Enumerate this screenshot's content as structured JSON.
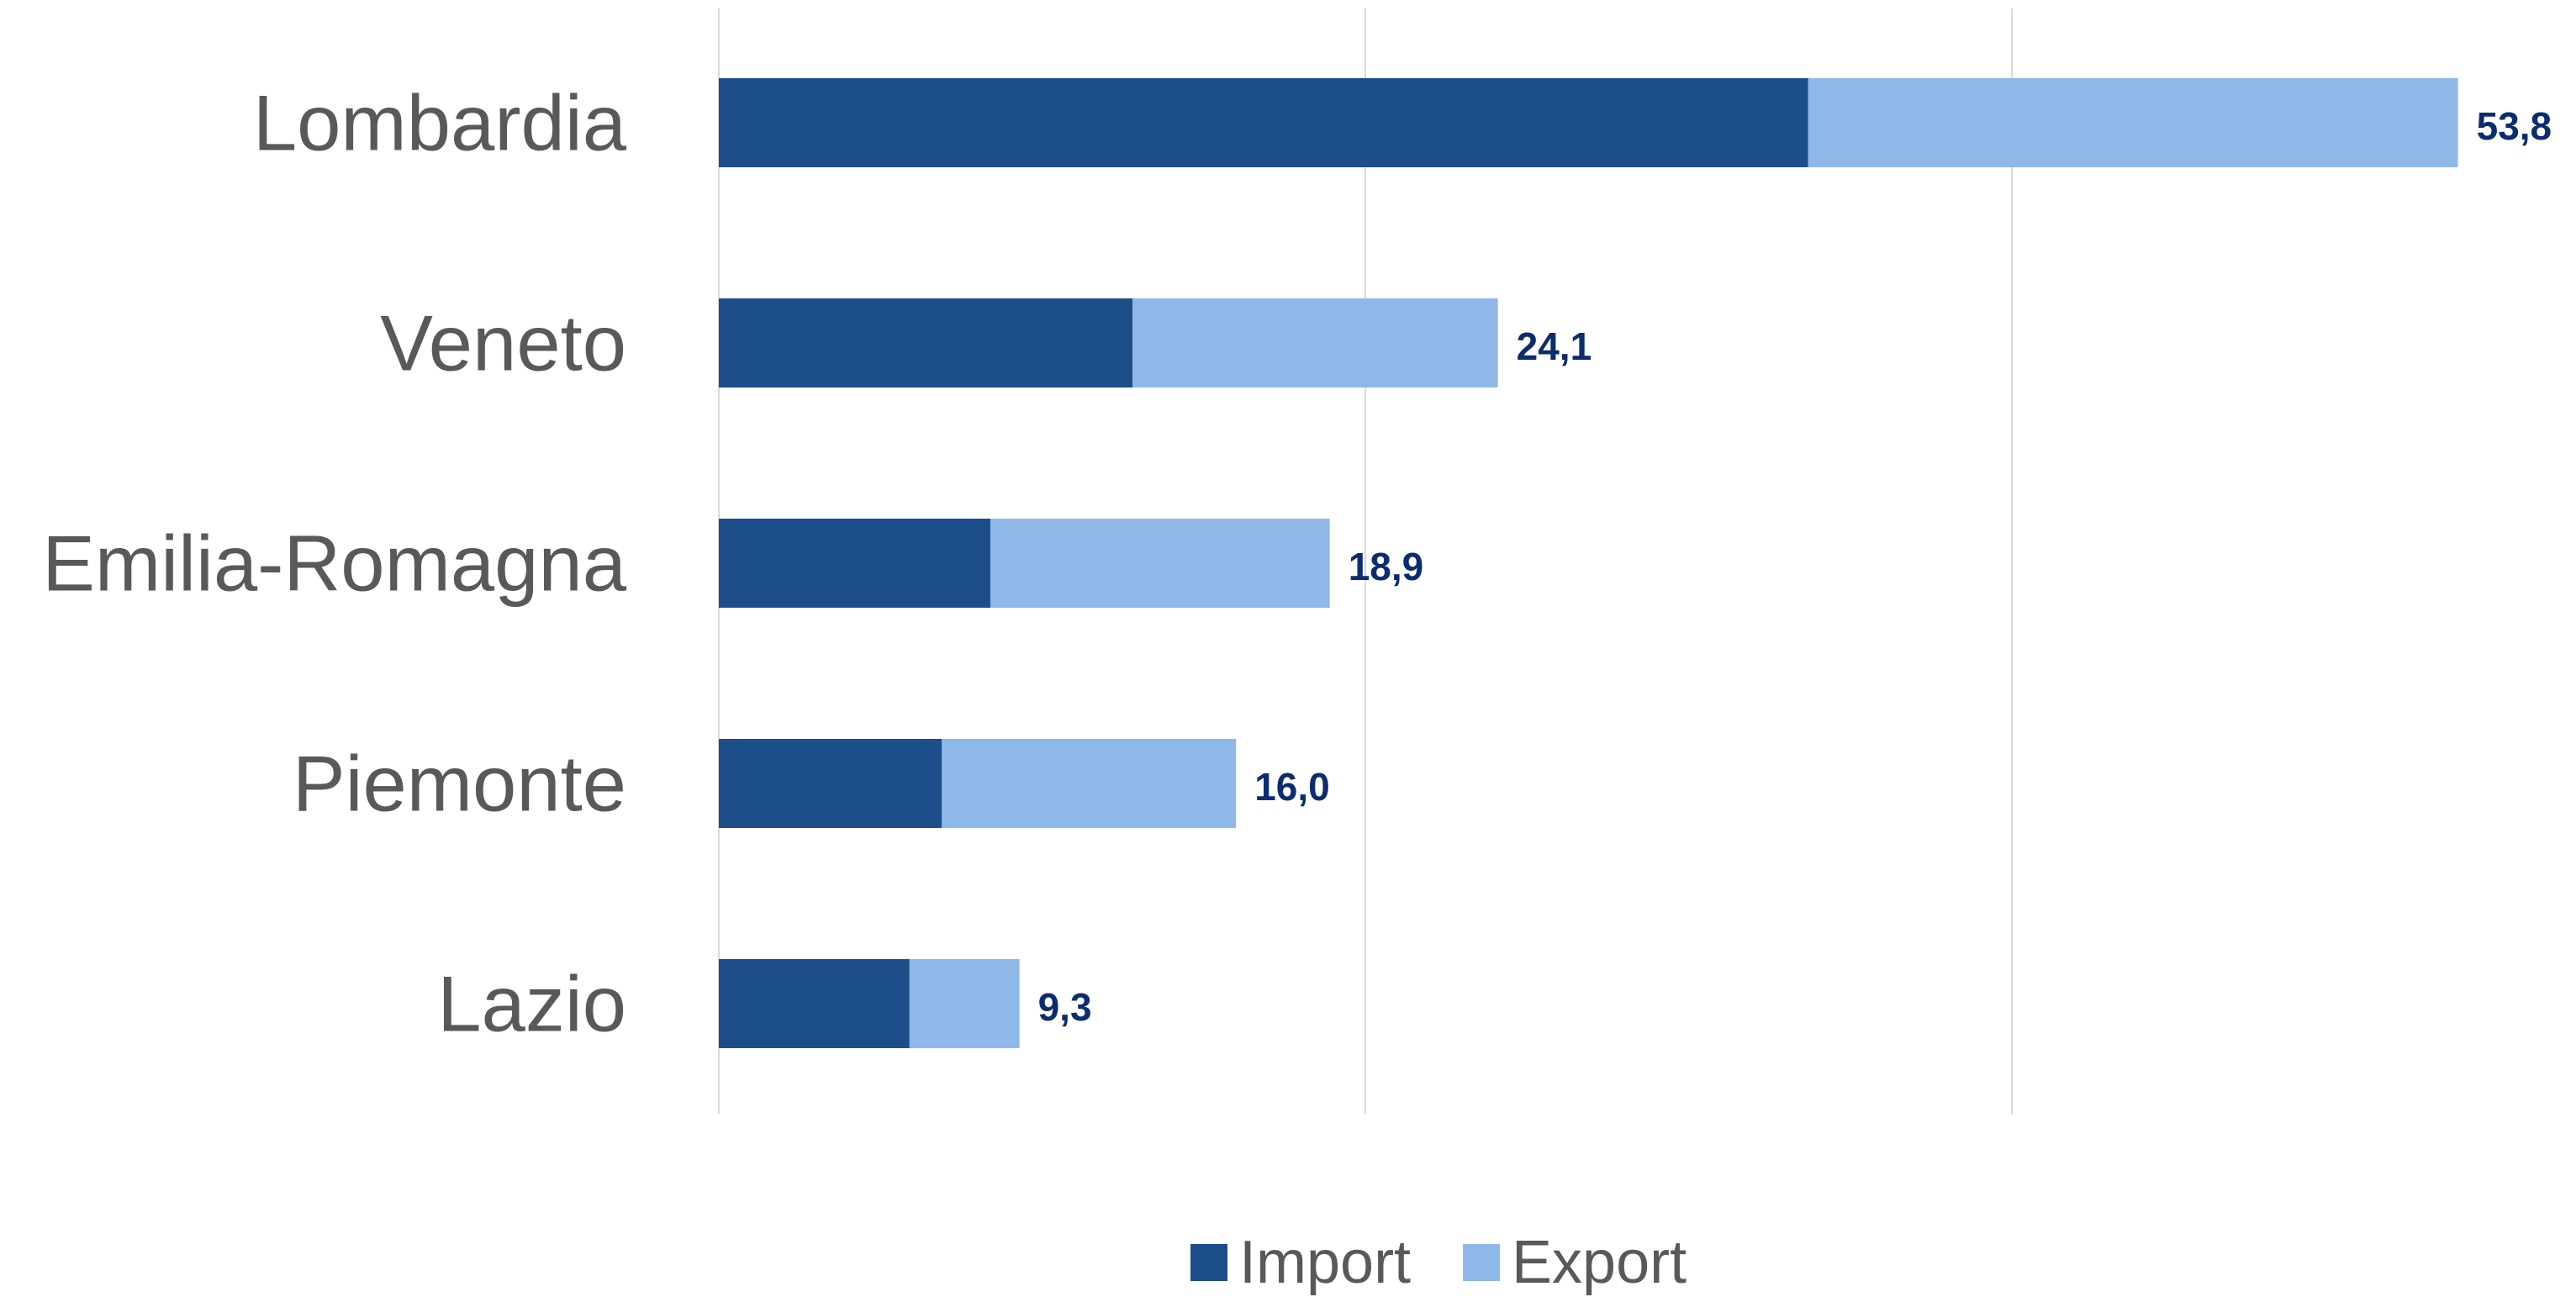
{
  "chart_data": {
    "type": "bar",
    "orientation": "horizontal",
    "stacked": true,
    "categories": [
      "Lombardia",
      "Veneto",
      "Emilia-Romagna",
      "Piemonte",
      "Lazio"
    ],
    "series": [
      {
        "name": "Import",
        "values": [
          33.7,
          12.8,
          8.4,
          6.9,
          5.9
        ]
      },
      {
        "name": "Export",
        "values": [
          20.1,
          11.3,
          10.5,
          9.1,
          3.4
        ]
      }
    ],
    "totals": [
      53.8,
      24.1,
      18.9,
      16.0,
      9.3
    ],
    "total_labels": [
      "53,8",
      "24,1",
      "18,9",
      "16,0",
      "9,3"
    ],
    "xlim": [
      0,
      60
    ],
    "gridlines_at": [
      0,
      20,
      40
    ],
    "grid": true,
    "legend_position": "bottom",
    "colors": {
      "Import": "#1c4f89",
      "Export": "#8fb8e8",
      "gridline": "#d9d9d9",
      "category_text": "#595959",
      "total_text": "#0b2d6e"
    },
    "title": "",
    "xlabel": "",
    "ylabel": ""
  },
  "legend": {
    "items": [
      {
        "label": "Import",
        "color": "#1c4f89"
      },
      {
        "label": "Export",
        "color": "#8fb8e8"
      }
    ]
  }
}
